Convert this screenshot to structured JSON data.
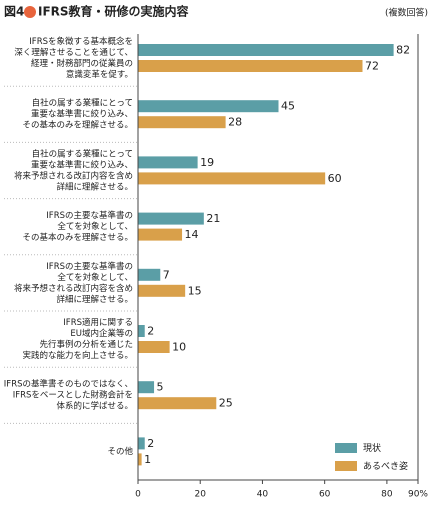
{
  "chart_data": {
    "type": "hbar",
    "figure_label": "図4",
    "title": "IFRS教育・研修の実施内容",
    "subtitle": "(複数回答)",
    "categories": [
      [
        "IFRSを象徴する基本概念を",
        "深く理解させることを通じて、",
        "経理・財務部門の従業員の",
        "意識変革を促す。"
      ],
      [
        "自社の属する業種にとって",
        "重要な基準書に絞り込み、",
        "その基本のみを理解させる。"
      ],
      [
        "自社の属する業種にとって",
        "重要な基準書に絞り込み、",
        "将来予想される改訂内容を含め",
        "詳細に理解させる。"
      ],
      [
        "IFRSの主要な基準書の",
        "全てを対象として、",
        "その基本のみを理解させる。"
      ],
      [
        "IFRSの主要な基準書の",
        "全てを対象として、",
        "将来予想される改訂内容を含め",
        "詳細に理解させる。"
      ],
      [
        "IFRS適用に関する",
        "EU域内企業等の",
        "先行事例の分析を通じた",
        "実践的な能力を向上させる。"
      ],
      [
        "IFRSの基準書そのものではなく、",
        "IFRSをベースとした財務会計を",
        "体系的に学ばせる。"
      ],
      [
        "その他"
      ]
    ],
    "series": [
      {
        "name": "現状",
        "color": "#5b9ea6",
        "values": [
          82,
          45,
          19,
          21,
          7,
          2,
          5,
          2
        ]
      },
      {
        "name": "あるべき姿",
        "color": "#d9a04a",
        "values": [
          72,
          28,
          60,
          14,
          15,
          10,
          25,
          1
        ]
      }
    ],
    "xlim": [
      0,
      90
    ],
    "xticks": [
      0,
      20,
      40,
      60,
      80,
      {
        "value": 90,
        "label": "90%"
      }
    ],
    "legend": "lower right"
  }
}
